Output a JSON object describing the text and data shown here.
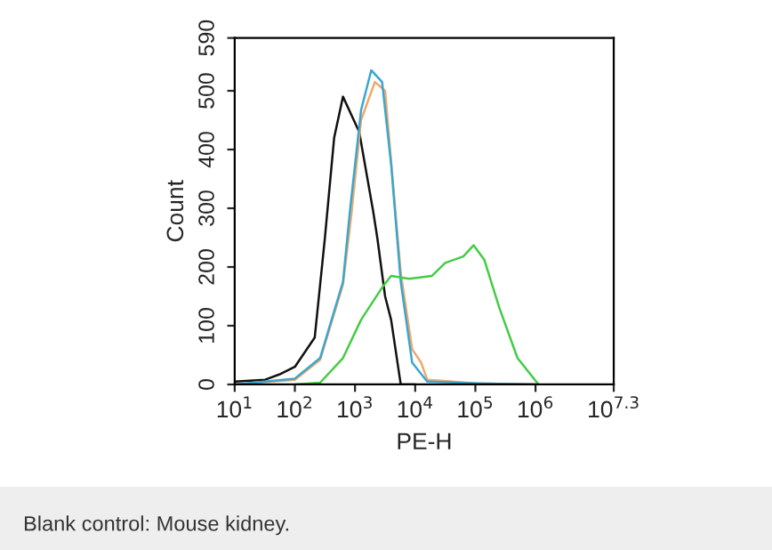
{
  "chart_data": {
    "type": "line",
    "xlabel": "PE-H",
    "ylabel": "Count",
    "log": "x",
    "grid": false,
    "legend": false,
    "xlim": [
      10,
      19952623
    ],
    "xticks": [
      {
        "value": 10,
        "label": "10$^{1}$"
      },
      {
        "value": 100,
        "label": "10$^{2}$"
      },
      {
        "value": 1000,
        "label": "10$^{3}$"
      },
      {
        "value": 10000,
        "label": "10$^{4}$"
      },
      {
        "value": 100000,
        "label": "10$^{5}$"
      },
      {
        "value": 1000000,
        "label": "10$^{6}$"
      },
      {
        "value": 19952623,
        "label": "10$^{7.3}$"
      }
    ],
    "ylim": [
      0,
      590
    ],
    "yticks": [
      0,
      100,
      200,
      300,
      400,
      500,
      590
    ],
    "annotations": [
      "Blank control: Mouse kidney."
    ],
    "series": [
      {
        "color": "#111111",
        "x": [
          10,
          32,
          55,
          100,
          214,
          316,
          450,
          631,
          1175,
          2000,
          2344,
          3162,
          3981,
          5754,
          10000
        ],
        "values": [
          5,
          8,
          17,
          30,
          80,
          250,
          420,
          490,
          430,
          295,
          250,
          150,
          110,
          0,
          0
        ]
      },
      {
        "color": "#f0a868",
        "x": [
          10,
          100,
          263,
          631,
          871,
          1259,
          2138,
          3162,
          3981,
          5754,
          8913,
          12589,
          15849,
          100000,
          1000000
        ],
        "values": [
          0,
          8,
          42,
          170,
          290,
          450,
          515,
          500,
          380,
          190,
          60,
          37,
          8,
          2,
          0
        ]
      },
      {
        "color": "#3aa6d0",
        "x": [
          10,
          100,
          263,
          631,
          832,
          1259,
          1862,
          2818,
          3981,
          5754,
          8913,
          15849,
          100000,
          1000000
        ],
        "values": [
          0,
          10,
          45,
          175,
          300,
          467,
          535,
          515,
          375,
          175,
          37,
          5,
          2,
          0
        ]
      },
      {
        "color": "#44cc44",
        "x": [
          100,
          263,
          631,
          1259,
          2818,
          3981,
          7943,
          19055,
          31623,
          63096,
          93325,
          141254,
          251189,
          501187,
          1122018
        ],
        "values": [
          0,
          3,
          45,
          110,
          165,
          185,
          180,
          185,
          207,
          218,
          237,
          212,
          130,
          45,
          0
        ]
      }
    ]
  }
}
